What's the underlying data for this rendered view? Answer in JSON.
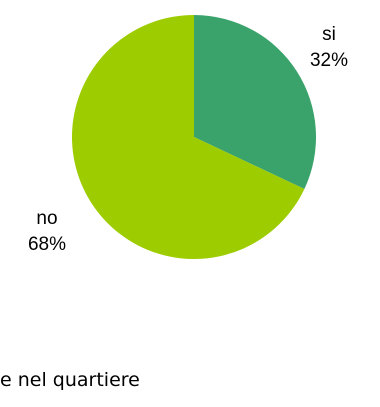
{
  "chart_data": {
    "type": "pie",
    "categories": [
      "si",
      "no"
    ],
    "values": [
      32,
      68
    ],
    "labels": [
      "32%",
      "68%"
    ],
    "colors": [
      "#3aa36b",
      "#9dcc00"
    ],
    "title": "",
    "legend": "none"
  },
  "caption": "e nel quartiere"
}
